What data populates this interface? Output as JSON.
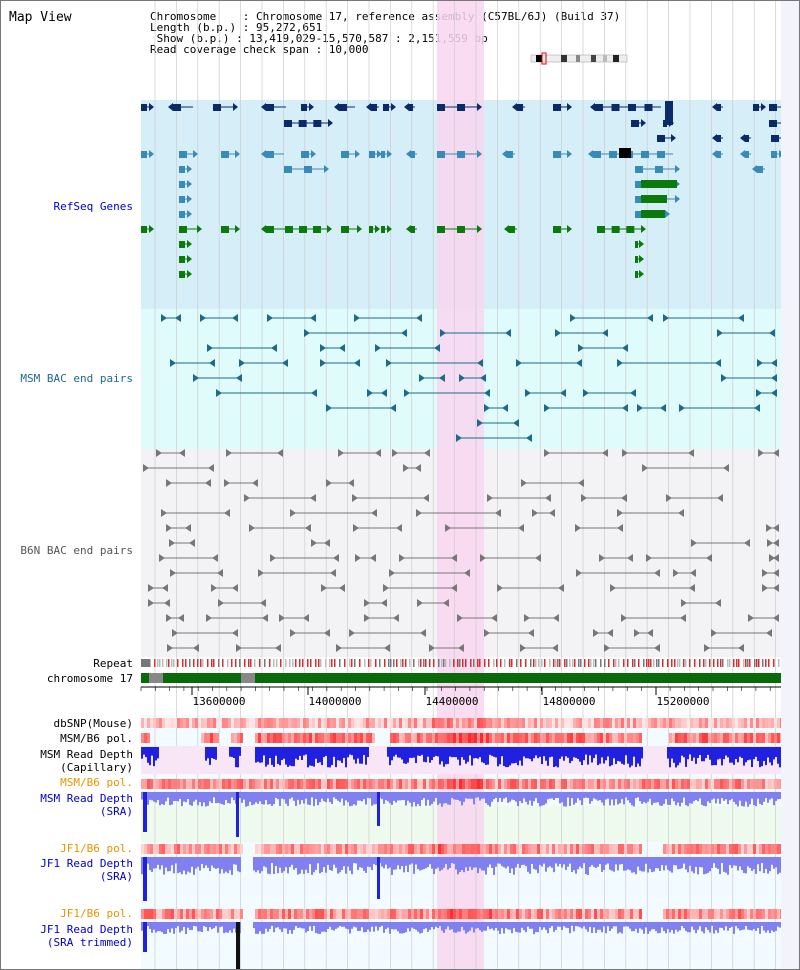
{
  "title": "Map View",
  "info": {
    "chromosome_line": "Chromosome    : Chromosome 17, reference assembly (C57BL/6J) (Build 37)",
    "length_line": "Length (b.p.) : 95,272,651",
    "show_line": " Show (b.p.) : 13,419,029-15,570,587 : 2,151,559 bp",
    "coverage_line": "Read coverage check span : 10,000"
  },
  "tracks": {
    "refseq": "RefSeq Genes",
    "msm_bac": "MSM BAC end pairs",
    "b6n_bac": "B6N BAC end pairs",
    "repeat": "Repeat",
    "chrom": "chromosome 17",
    "dbsnp": "dbSNP(Mouse)",
    "msm_b6_pol_1": "MSM/B6 pol.",
    "msm_depth_cap_1": "MSM Read Depth",
    "msm_depth_cap_2": "(Capillary)",
    "msm_b6_pol_2": "MSM/B6 pol.",
    "msm_depth_sra_1": "MSM Read Depth",
    "msm_depth_sra_2": "(SRA)",
    "jf1_b6_pol_1": "JF1/B6 pol.",
    "jf1_depth_sra_1": "JF1 Read Depth",
    "jf1_depth_sra_2": "(SRA)",
    "jf1_b6_pol_2": "JF1/B6 pol.",
    "jf1_depth_trim_1": "JF1 Read Depth",
    "jf1_depth_trim_2": "(SRA trimmed)"
  },
  "axis": {
    "ticks": [
      "13600000",
      "14000000",
      "14400000",
      "14800000",
      "15200000"
    ]
  },
  "colors": {
    "refseq_bg": "#d6eef8",
    "msm_bg": "#e0fbfb",
    "b6n_bg": "#f3f3f6",
    "highlight": "#f8d6f0",
    "dark_navy": "#0a2a6a",
    "mid_blue": "#3a8ab8",
    "green": "#0a7a0a",
    "teal": "#1d6a8a",
    "gray": "#777777",
    "repeat_red": "#d03030",
    "chrom_green": "#0a6a0a",
    "depth_blue": "#2020e0",
    "depth_light": "#8080f0",
    "pol_red": "#ee3030"
  }
}
